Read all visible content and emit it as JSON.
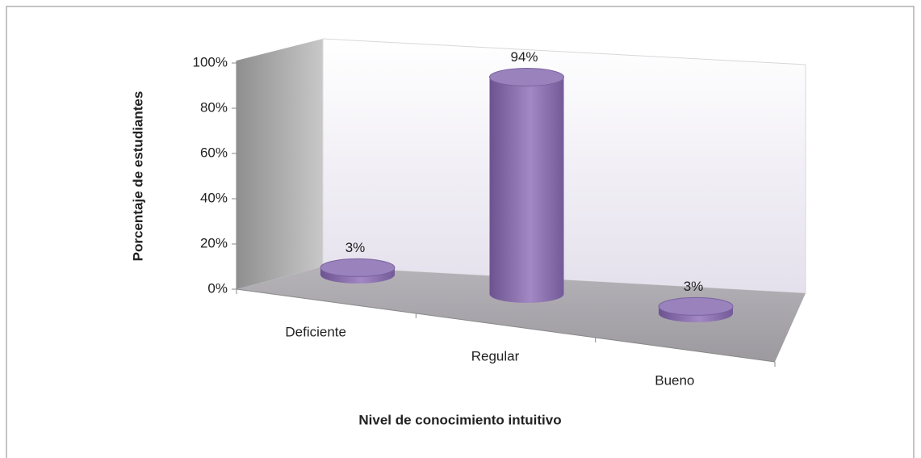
{
  "chart_data": {
    "type": "bar",
    "y_axis_label": "Porcentaje de estudiantes",
    "x_axis_label": "Nivel de conocimiento intuitivo",
    "categories": [
      "Deficiente",
      "Regular",
      "Bueno"
    ],
    "values": [
      3,
      94,
      3
    ],
    "value_labels": [
      "3%",
      "94%",
      "3%"
    ],
    "color": "#8064a2",
    "ylim": [
      0,
      100
    ],
    "yticks": [
      {
        "value": 0,
        "label": "0%"
      },
      {
        "value": 20,
        "label": "20%"
      },
      {
        "value": 40,
        "label": "40%"
      },
      {
        "value": 60,
        "label": "60%"
      },
      {
        "value": 80,
        "label": "80%"
      },
      {
        "value": 100,
        "label": "100%"
      }
    ]
  }
}
